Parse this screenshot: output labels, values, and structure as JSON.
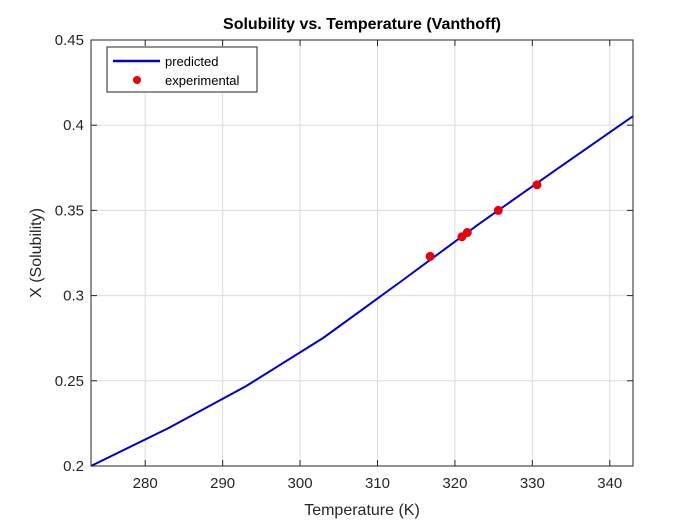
{
  "chart_data": {
    "type": "line",
    "title": "Solubility vs. Temperature (Vanthoff)",
    "xlabel": "Temperature (K)",
    "ylabel": "X (Solubility)",
    "xlim": [
      273,
      343
    ],
    "ylim": [
      0.2,
      0.45
    ],
    "xticks": [
      280,
      290,
      300,
      310,
      320,
      330,
      340
    ],
    "xtick_labels": [
      "280",
      "290",
      "300",
      "310",
      "320",
      "330",
      "340"
    ],
    "yticks": [
      0.2,
      0.25,
      0.3,
      0.35,
      0.4,
      0.45
    ],
    "ytick_labels": [
      "0.2",
      "0.25",
      "0.3",
      "0.35",
      "0.4",
      "0.45"
    ],
    "grid": true,
    "legend_position": "top-left",
    "series": [
      {
        "name": "predicted",
        "style": "line",
        "color": "#0000cc",
        "x": [
          273,
          283,
          293,
          303,
          313,
          323,
          333,
          343
        ],
        "y": [
          0.2,
          0.2222,
          0.2468,
          0.2752,
          0.3082,
          0.3417,
          0.3737,
          0.4053
        ]
      },
      {
        "name": "experimental",
        "style": "markers",
        "color": "#e8000b",
        "x": [
          316.8,
          320.9,
          321.6,
          325.6,
          330.6
        ],
        "y": [
          0.323,
          0.3345,
          0.337,
          0.35,
          0.365
        ]
      }
    ]
  }
}
